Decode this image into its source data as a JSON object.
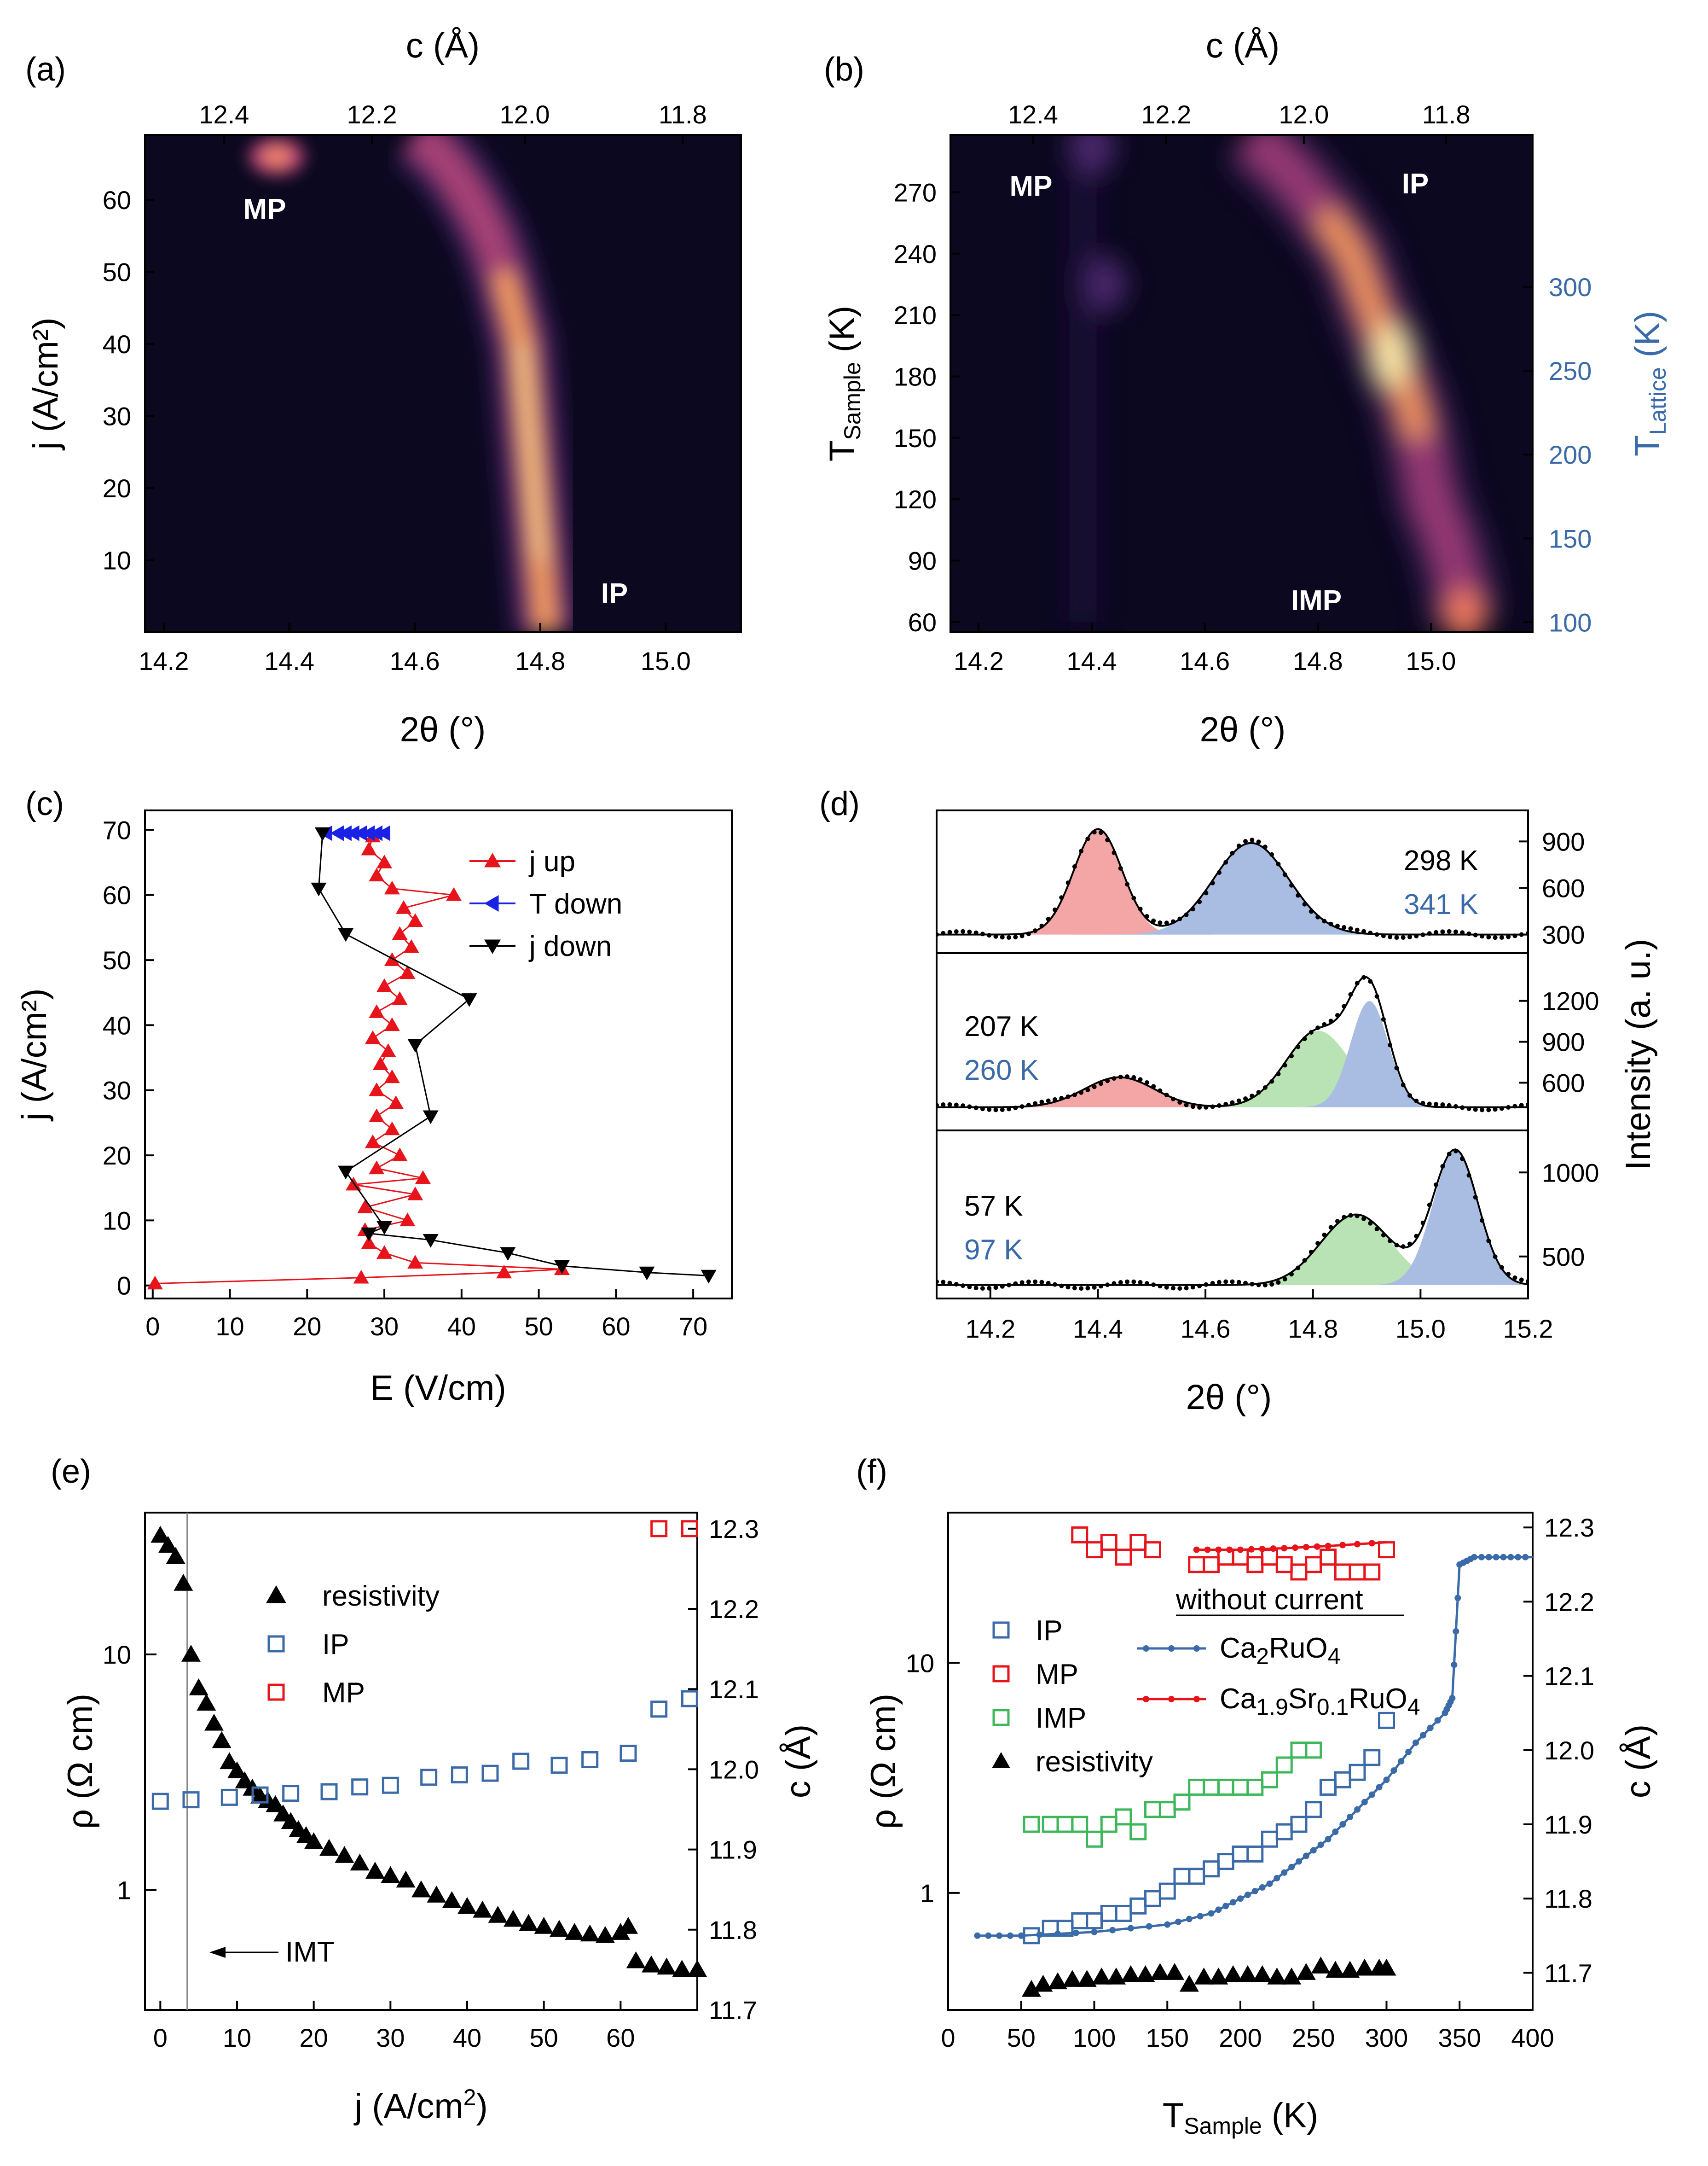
{
  "panel_labels": [
    "(a)",
    "(b)",
    "(c)",
    "(d)",
    "(e)",
    "(f)"
  ],
  "colors": {
    "red": "#e8141b",
    "blue": "#3a6aa8",
    "green": "#3cb85a",
    "black": "#000000",
    "map_bg": "#0b0820",
    "map_peak": "#fde9a8",
    "fill_red": "#f4a5a5",
    "fill_blue": "#a9bde3",
    "fill_green": "#b9e3b4"
  },
  "chart_data": [
    {
      "id": "a",
      "type": "heatmap",
      "xlabel": "2θ (°)",
      "ylabel": "j (A/cm²)",
      "top_label": "c (Å)",
      "xlim": [
        14.17,
        15.12
      ],
      "ylim": [
        0,
        69
      ],
      "xticks": [
        "14.2",
        "14.4",
        "14.6",
        "14.8",
        "15.0"
      ],
      "yticks": [
        "10",
        "20",
        "30",
        "40",
        "50",
        "60"
      ],
      "top_ticks": [
        "12.4",
        "12.2",
        "12.0",
        "11.8"
      ],
      "annotations": [
        "MP",
        "IP"
      ],
      "ridge": {
        "y": [
          0,
          10,
          20,
          30,
          40,
          50,
          55,
          60,
          64,
          67,
          69
        ],
        "x": [
          14.81,
          14.8,
          14.79,
          14.78,
          14.77,
          14.74,
          14.72,
          14.69,
          14.66,
          14.63,
          14.6
        ]
      },
      "mp_spot": {
        "x": 14.38,
        "y": 66
      }
    },
    {
      "id": "b",
      "type": "heatmap",
      "xlabel": "2θ (°)",
      "ylabel": "T_Sample (K)",
      "ylabel_right": "T_Lattice (K)",
      "top_label": "c (Å)",
      "xlim": [
        14.15,
        15.18
      ],
      "ylim": [
        55,
        298
      ],
      "xticks": [
        "14.2",
        "14.4",
        "14.6",
        "14.8",
        "15.0"
      ],
      "yticks": [
        "60",
        "90",
        "120",
        "150",
        "180",
        "210",
        "240",
        "270"
      ],
      "right_ticks": [
        "100",
        "150",
        "200",
        "250",
        "300"
      ],
      "top_ticks": [
        "12.4",
        "12.2",
        "12.0",
        "11.8"
      ],
      "annotations": [
        "MP",
        "IP",
        "IMP"
      ],
      "ridge": {
        "y": [
          298,
          280,
          260,
          240,
          210,
          190,
          170,
          150,
          120,
          100,
          80,
          60
        ],
        "x": [
          14.68,
          14.75,
          14.81,
          14.86,
          14.9,
          14.93,
          14.96,
          14.98,
          15.0,
          15.03,
          15.05,
          15.06
        ]
      },
      "mp_spots": [
        {
          "x": 14.4,
          "y": 292
        },
        {
          "x": 14.42,
          "y": 225
        }
      ]
    },
    {
      "id": "c",
      "type": "line",
      "xlabel": "E (V/cm)",
      "ylabel": "j (A/cm²)",
      "xlim": [
        -1,
        75
      ],
      "ylim": [
        -2,
        73
      ],
      "xticks": [
        "0",
        "10",
        "20",
        "30",
        "40",
        "50",
        "60",
        "70"
      ],
      "yticks": [
        "0",
        "10",
        "20",
        "30",
        "40",
        "50",
        "60",
        "70"
      ],
      "legend_position": "top-right",
      "series": [
        {
          "name": "j up",
          "color": "#e8141b",
          "marker": "triangle-up",
          "x": [
            0.3,
            27,
            45.5,
            53,
            34,
            30,
            28,
            27.5,
            33,
            27.5,
            34,
            26,
            35,
            29,
            32,
            28.5,
            31,
            29,
            31.5,
            29,
            31,
            29.5,
            30.5,
            28.5,
            31,
            29,
            32,
            30,
            33,
            31,
            33.5,
            32,
            34,
            32.5,
            39,
            31,
            29,
            30,
            28,
            28.5
          ],
          "y": [
            0.3,
            1.2,
            2,
            2.5,
            3.5,
            5,
            6.5,
            8.5,
            10,
            12,
            14,
            15.5,
            16.5,
            18,
            20,
            22,
            24,
            26,
            28,
            30,
            32,
            34,
            36,
            38,
            40,
            42,
            44,
            46,
            48,
            50,
            52,
            54,
            56,
            58,
            60,
            61,
            63,
            65,
            67,
            69
          ]
        },
        {
          "name": "T down",
          "color": "#1a22e6",
          "marker": "triangle-left",
          "x": [
            22.5,
            24,
            25,
            26,
            27,
            28,
            29,
            30
          ],
          "y": [
            69.5,
            69.5,
            69.5,
            69.5,
            69.5,
            69.5,
            69.5,
            69.5
          ]
        },
        {
          "name": "j down",
          "color": "#000000",
          "marker": "triangle-down",
          "x": [
            22,
            21.5,
            25,
            41,
            34,
            36,
            25,
            30,
            28,
            36,
            46,
            53,
            64,
            72
          ],
          "y": [
            69.5,
            61,
            54,
            44,
            37,
            26,
            17.5,
            9,
            8,
            7,
            5,
            3,
            2,
            1.5
          ]
        }
      ]
    },
    {
      "id": "d",
      "type": "line",
      "xlabel": "2θ (°)",
      "ylabel": "Intensity (a. u.)",
      "xlim": [
        14.1,
        15.2
      ],
      "xticks": [
        "14.2",
        "14.4",
        "14.6",
        "14.8",
        "15.0",
        "15.2"
      ],
      "subplots": [
        {
          "label_black": "298 K",
          "label_blue": "341 K",
          "ylim": [
            180,
            1100
          ],
          "yticks": [
            "300",
            "600",
            "900"
          ],
          "baseline": 300,
          "peaks": [
            {
              "color": "red",
              "center": 14.4,
              "sigma": 0.045,
              "amp": 680
            },
            {
              "color": "blue",
              "center": 14.685,
              "sigma": 0.07,
              "amp": 590
            }
          ]
        },
        {
          "label_black": "207 K",
          "label_blue": "260 K",
          "ylim": [
            250,
            1550
          ],
          "yticks": [
            "600",
            "900",
            "1200"
          ],
          "baseline": 420,
          "peaks": [
            {
              "color": "red",
              "center": 14.44,
              "sigma": 0.065,
              "amp": 220
            },
            {
              "color": "green",
              "center": 14.81,
              "sigma": 0.06,
              "amp": 560
            },
            {
              "color": "blue",
              "center": 14.905,
              "sigma": 0.035,
              "amp": 780
            }
          ]
        },
        {
          "label_black": "57 K",
          "label_blue": "97 K",
          "ylim": [
            250,
            1250
          ],
          "yticks": [
            "500",
            "1000"
          ],
          "baseline": 330,
          "peaks": [
            {
              "color": "green",
              "center": 14.88,
              "sigma": 0.065,
              "amp": 420
            },
            {
              "color": "blue",
              "center": 15.065,
              "sigma": 0.042,
              "amp": 800
            }
          ]
        }
      ]
    },
    {
      "id": "e",
      "type": "scatter",
      "xlabel": "j (A/cm²)",
      "ylabel": "ρ (Ω cm)",
      "ylabel_right": "c (Å)",
      "xlim": [
        -2,
        70
      ],
      "ylim_log": [
        0.31,
        40
      ],
      "ylim_right": [
        11.7,
        12.32
      ],
      "xticks": [
        "0",
        "10",
        "20",
        "30",
        "40",
        "50",
        "60"
      ],
      "yticks": [
        "1",
        "10"
      ],
      "right_ticks": [
        "11.7",
        "11.8",
        "11.9",
        "12.0",
        "12.1",
        "12.2",
        "12.3"
      ],
      "legend_position": "top-center",
      "annotation": "IMT",
      "imt_line_x": 3.5,
      "series": [
        {
          "name": "resistivity",
          "color": "#000000",
          "marker": "triangle-up",
          "axis": "left",
          "x": [
            0,
            1,
            2,
            3,
            4,
            5,
            6,
            7,
            8,
            9,
            10,
            11,
            12,
            13,
            14,
            15,
            16,
            17,
            18,
            19,
            20,
            22,
            24,
            26,
            28,
            30,
            32,
            34,
            36,
            38,
            40,
            42,
            44,
            46,
            48,
            50,
            52,
            54,
            56,
            58,
            60,
            61,
            62,
            64,
            66,
            68,
            70
          ],
          "y": [
            32,
            29,
            26,
            20,
            10,
            7.2,
            6.2,
            5.1,
            4.3,
            3.5,
            3.2,
            2.9,
            2.7,
            2.5,
            2.4,
            2.3,
            2.1,
            1.95,
            1.8,
            1.7,
            1.6,
            1.5,
            1.4,
            1.3,
            1.2,
            1.15,
            1.1,
            1.0,
            0.95,
            0.9,
            0.85,
            0.82,
            0.78,
            0.75,
            0.72,
            0.7,
            0.68,
            0.66,
            0.65,
            0.64,
            0.66,
            0.7,
            0.5,
            0.48,
            0.47,
            0.46,
            0.46
          ]
        },
        {
          "name": "IP",
          "color": "#3a6aa8",
          "marker": "square-open",
          "axis": "right",
          "x": [
            0,
            4,
            9,
            13,
            17,
            22,
            26,
            30,
            35,
            39,
            43,
            47,
            52,
            56,
            61,
            65,
            69
          ],
          "y": [
            11.96,
            11.962,
            11.965,
            11.968,
            11.97,
            11.972,
            11.978,
            11.98,
            11.99,
            11.993,
            11.995,
            12.01,
            12.005,
            12.012,
            12.02,
            12.075,
            12.088
          ]
        },
        {
          "name": "MP",
          "color": "#e8141b",
          "marker": "square-open",
          "axis": "right",
          "x": [
            65,
            69
          ],
          "y": [
            12.3,
            12.3
          ]
        }
      ]
    },
    {
      "id": "f",
      "type": "scatter",
      "xlabel": "T_Sample (K)",
      "ylabel": "ρ (Ω cm)",
      "ylabel_right": "c (Å)",
      "xlim": [
        0,
        400
      ],
      "ylim_log": [
        0.31,
        45
      ],
      "ylim_right": [
        11.65,
        12.32
      ],
      "xticks": [
        "0",
        "50",
        "100",
        "150",
        "200",
        "250",
        "300",
        "350",
        "400"
      ],
      "yticks": [
        "1",
        "10"
      ],
      "right_ticks": [
        "11.7",
        "11.8",
        "11.9",
        "12.0",
        "12.1",
        "12.2",
        "12.3"
      ],
      "legend_position": "left-center",
      "legend_title": "without current",
      "series": [
        {
          "name": "IP",
          "color": "#3a6aa8",
          "marker": "square-open",
          "axis": "right",
          "x": [
            57,
            70,
            80,
            90,
            100,
            110,
            120,
            130,
            140,
            150,
            160,
            170,
            180,
            190,
            200,
            210,
            220,
            230,
            240,
            250,
            260,
            270,
            280,
            290,
            300
          ],
          "y": [
            11.75,
            11.76,
            11.76,
            11.77,
            11.77,
            11.78,
            11.78,
            11.79,
            11.8,
            11.81,
            11.83,
            11.83,
            11.84,
            11.85,
            11.86,
            11.86,
            11.88,
            11.89,
            11.9,
            11.92,
            11.95,
            11.96,
            11.97,
            11.99,
            12.04
          ]
        },
        {
          "name": "MP",
          "color": "#e8141b",
          "marker": "square-open",
          "axis": "right",
          "x": [
            90,
            100,
            110,
            120,
            130,
            140,
            170,
            180,
            190,
            200,
            210,
            220,
            230,
            240,
            250,
            260,
            270,
            280,
            290,
            300
          ],
          "y": [
            12.29,
            12.27,
            12.28,
            12.26,
            12.28,
            12.27,
            12.25,
            12.25,
            12.26,
            12.26,
            12.25,
            12.26,
            12.25,
            12.24,
            12.25,
            12.26,
            12.24,
            12.24,
            12.24,
            12.27
          ]
        },
        {
          "name": "IMP",
          "color": "#3cb85a",
          "marker": "square-open",
          "axis": "right",
          "x": [
            57,
            70,
            80,
            90,
            100,
            110,
            120,
            130,
            140,
            150,
            160,
            170,
            180,
            190,
            200,
            210,
            220,
            230,
            240,
            250
          ],
          "y": [
            11.9,
            11.9,
            11.9,
            11.9,
            11.88,
            11.9,
            11.91,
            11.89,
            11.92,
            11.92,
            11.93,
            11.95,
            11.95,
            11.95,
            11.95,
            11.95,
            11.96,
            11.98,
            12.0,
            12.0
          ]
        },
        {
          "name": "resistivity",
          "color": "#000000",
          "marker": "triangle-up",
          "axis": "left",
          "x": [
            57,
            65,
            75,
            85,
            95,
            105,
            115,
            125,
            135,
            145,
            155,
            165,
            175,
            185,
            195,
            205,
            215,
            225,
            235,
            245,
            255,
            265,
            275,
            285,
            295,
            300
          ],
          "y": [
            0.38,
            0.4,
            0.41,
            0.42,
            0.42,
            0.43,
            0.43,
            0.44,
            0.44,
            0.45,
            0.45,
            0.4,
            0.43,
            0.43,
            0.44,
            0.44,
            0.44,
            0.43,
            0.43,
            0.45,
            0.48,
            0.46,
            0.46,
            0.47,
            0.47,
            0.47
          ]
        },
        {
          "name": "Ca2RuO4",
          "color": "#3a6aa8",
          "marker": "dot-line",
          "axis": "right",
          "x": [
            20,
            50,
            100,
            150,
            180,
            200,
            220,
            240,
            260,
            280,
            300,
            320,
            340,
            345,
            350,
            360,
            380,
            400
          ],
          "y": [
            11.75,
            11.75,
            11.755,
            11.765,
            11.78,
            11.8,
            11.82,
            11.85,
            11.88,
            11.92,
            11.96,
            12.01,
            12.05,
            12.07,
            12.25,
            12.26,
            12.26,
            12.26
          ]
        },
        {
          "name": "Ca1.9Sr0.1RuO4",
          "color": "#e8141b",
          "marker": "dot-line",
          "axis": "right",
          "x": [
            170,
            200,
            230,
            260,
            300
          ],
          "y": [
            12.27,
            12.27,
            12.272,
            12.275,
            12.28
          ]
        }
      ],
      "legend_labels": {
        "ip": "IP",
        "mp": "MP",
        "imp": "IMP",
        "res": "resistivity",
        "ca_main": "Ca",
        "ca_sub": "2",
        "ca_rest": "RuO",
        "ca_sub2": "4",
        "sr_main": "Ca",
        "sr_sub": "1.9",
        "sr_mid": "Sr",
        "sr_sub2": "0.1",
        "sr_rest": "RuO",
        "sr_sub3": "4"
      }
    }
  ]
}
